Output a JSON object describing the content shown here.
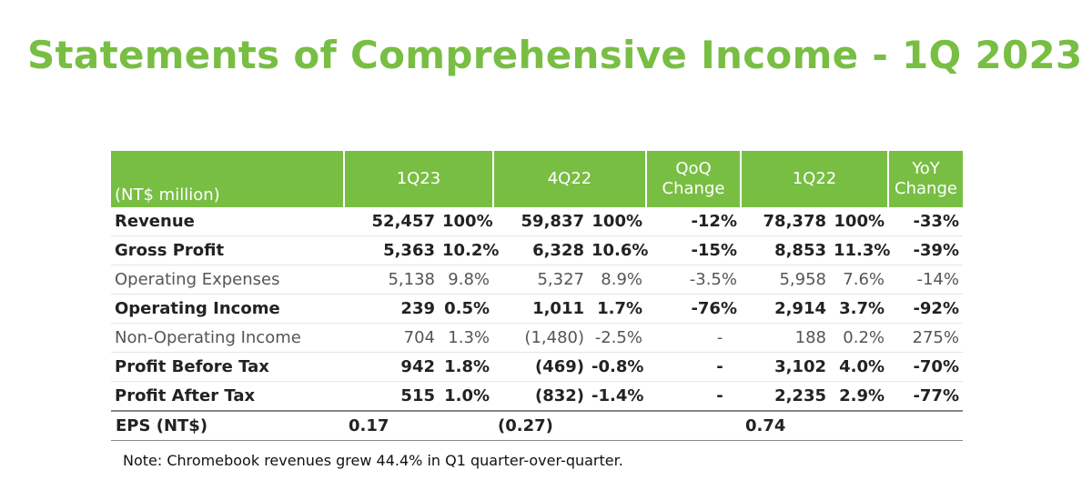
{
  "title": "Statements of Comprehensive Income - 1Q 2023",
  "table": {
    "unit_label": "(NT$ million)",
    "headers": {
      "q1_23": "1Q23",
      "q4_22": "4Q22",
      "qoq": "QoQ Change",
      "q1_22": "1Q22",
      "yoy": "YoY Change"
    },
    "rows": [
      {
        "label": "Revenue",
        "c1": "52,457",
        "c2": "100%",
        "c3": "59,837",
        "c4": "100%",
        "c5": "-12%",
        "c6": "78,378",
        "c7": "100%",
        "c8": "-33%"
      },
      {
        "label": "Gross Profit",
        "c1": "5,363",
        "c2": "10.2%",
        "c3": "6,328",
        "c4": "10.6%",
        "c5": "-15%",
        "c6": "8,853",
        "c7": "11.3%",
        "c8": "-39%"
      },
      {
        "label": "Operating Expenses",
        "c1": "5,138",
        "c2": "9.8%",
        "c3": "5,327",
        "c4": "8.9%",
        "c5": "-3.5%",
        "c6": "5,958",
        "c7": "7.6%",
        "c8": "-14%"
      },
      {
        "label": "Operating Income",
        "c1": "239",
        "c2": "0.5%",
        "c3": "1,011",
        "c4": "1.7%",
        "c5": "-76%",
        "c6": "2,914",
        "c7": "3.7%",
        "c8": "-92%"
      },
      {
        "label": "Non-Operating Income",
        "c1": "704",
        "c2": "1.3%",
        "c3": "(1,480)",
        "c4": "-2.5%",
        "c5": "-",
        "c6": "188",
        "c7": "0.2%",
        "c8": "275%"
      },
      {
        "label": "Profit Before Tax",
        "c1": "942",
        "c2": "1.8%",
        "c3": "(469)",
        "c4": "-0.8%",
        "c5": "-",
        "c6": "3,102",
        "c7": "4.0%",
        "c8": "-70%"
      },
      {
        "label": "Profit After Tax",
        "c1": "515",
        "c2": "1.0%",
        "c3": "(832)",
        "c4": "-1.4%",
        "c5": "-",
        "c6": "2,235",
        "c7": "2.9%",
        "c8": "-77%"
      }
    ],
    "eps": {
      "label": "EPS (NT$)",
      "q1_23": "0.17",
      "q4_22": "(0.27)",
      "q1_22": "0.74"
    }
  },
  "note": "Note: Chromebook revenues grew 44.4% in Q1 quarter-over-quarter.",
  "colors": {
    "accent": "#78BE43"
  }
}
